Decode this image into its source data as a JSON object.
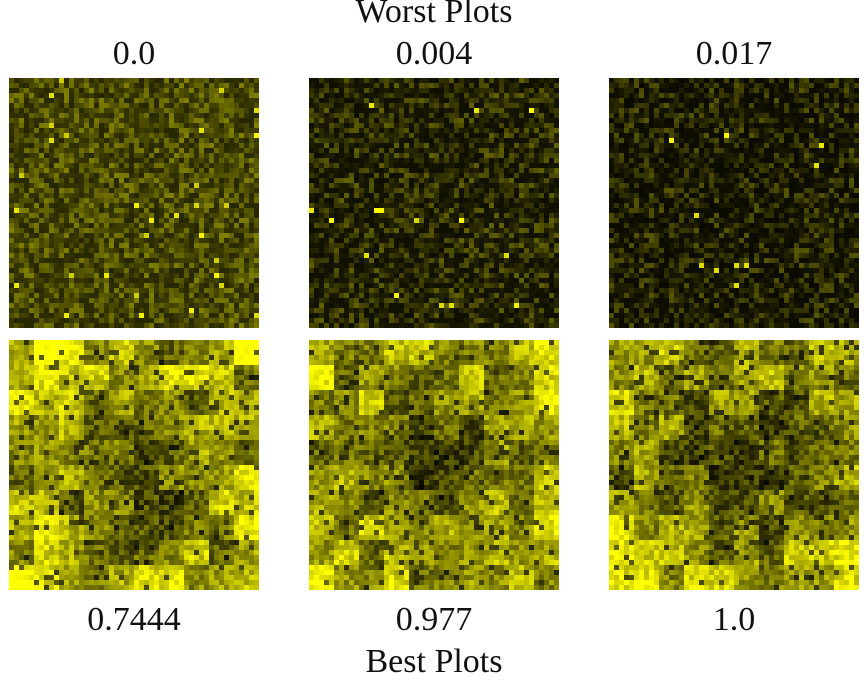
{
  "top_heading": "Worst Plots",
  "bottom_heading": "Best Plots",
  "worst_plots": [
    {
      "score": "0.0",
      "style": "noise-mid"
    },
    {
      "score": "0.004",
      "style": "noise-dark"
    },
    {
      "score": "0.017",
      "style": "noise-darker"
    }
  ],
  "best_plots": [
    {
      "score": "0.7444",
      "style": "blocks"
    },
    {
      "score": "0.977",
      "style": "blocks"
    },
    {
      "score": "1.0",
      "style": "blocks-mixed"
    }
  ],
  "colors": {
    "colormap_low": "#000000",
    "colormap_high": "#ffff00",
    "background": "#ffffff"
  }
}
